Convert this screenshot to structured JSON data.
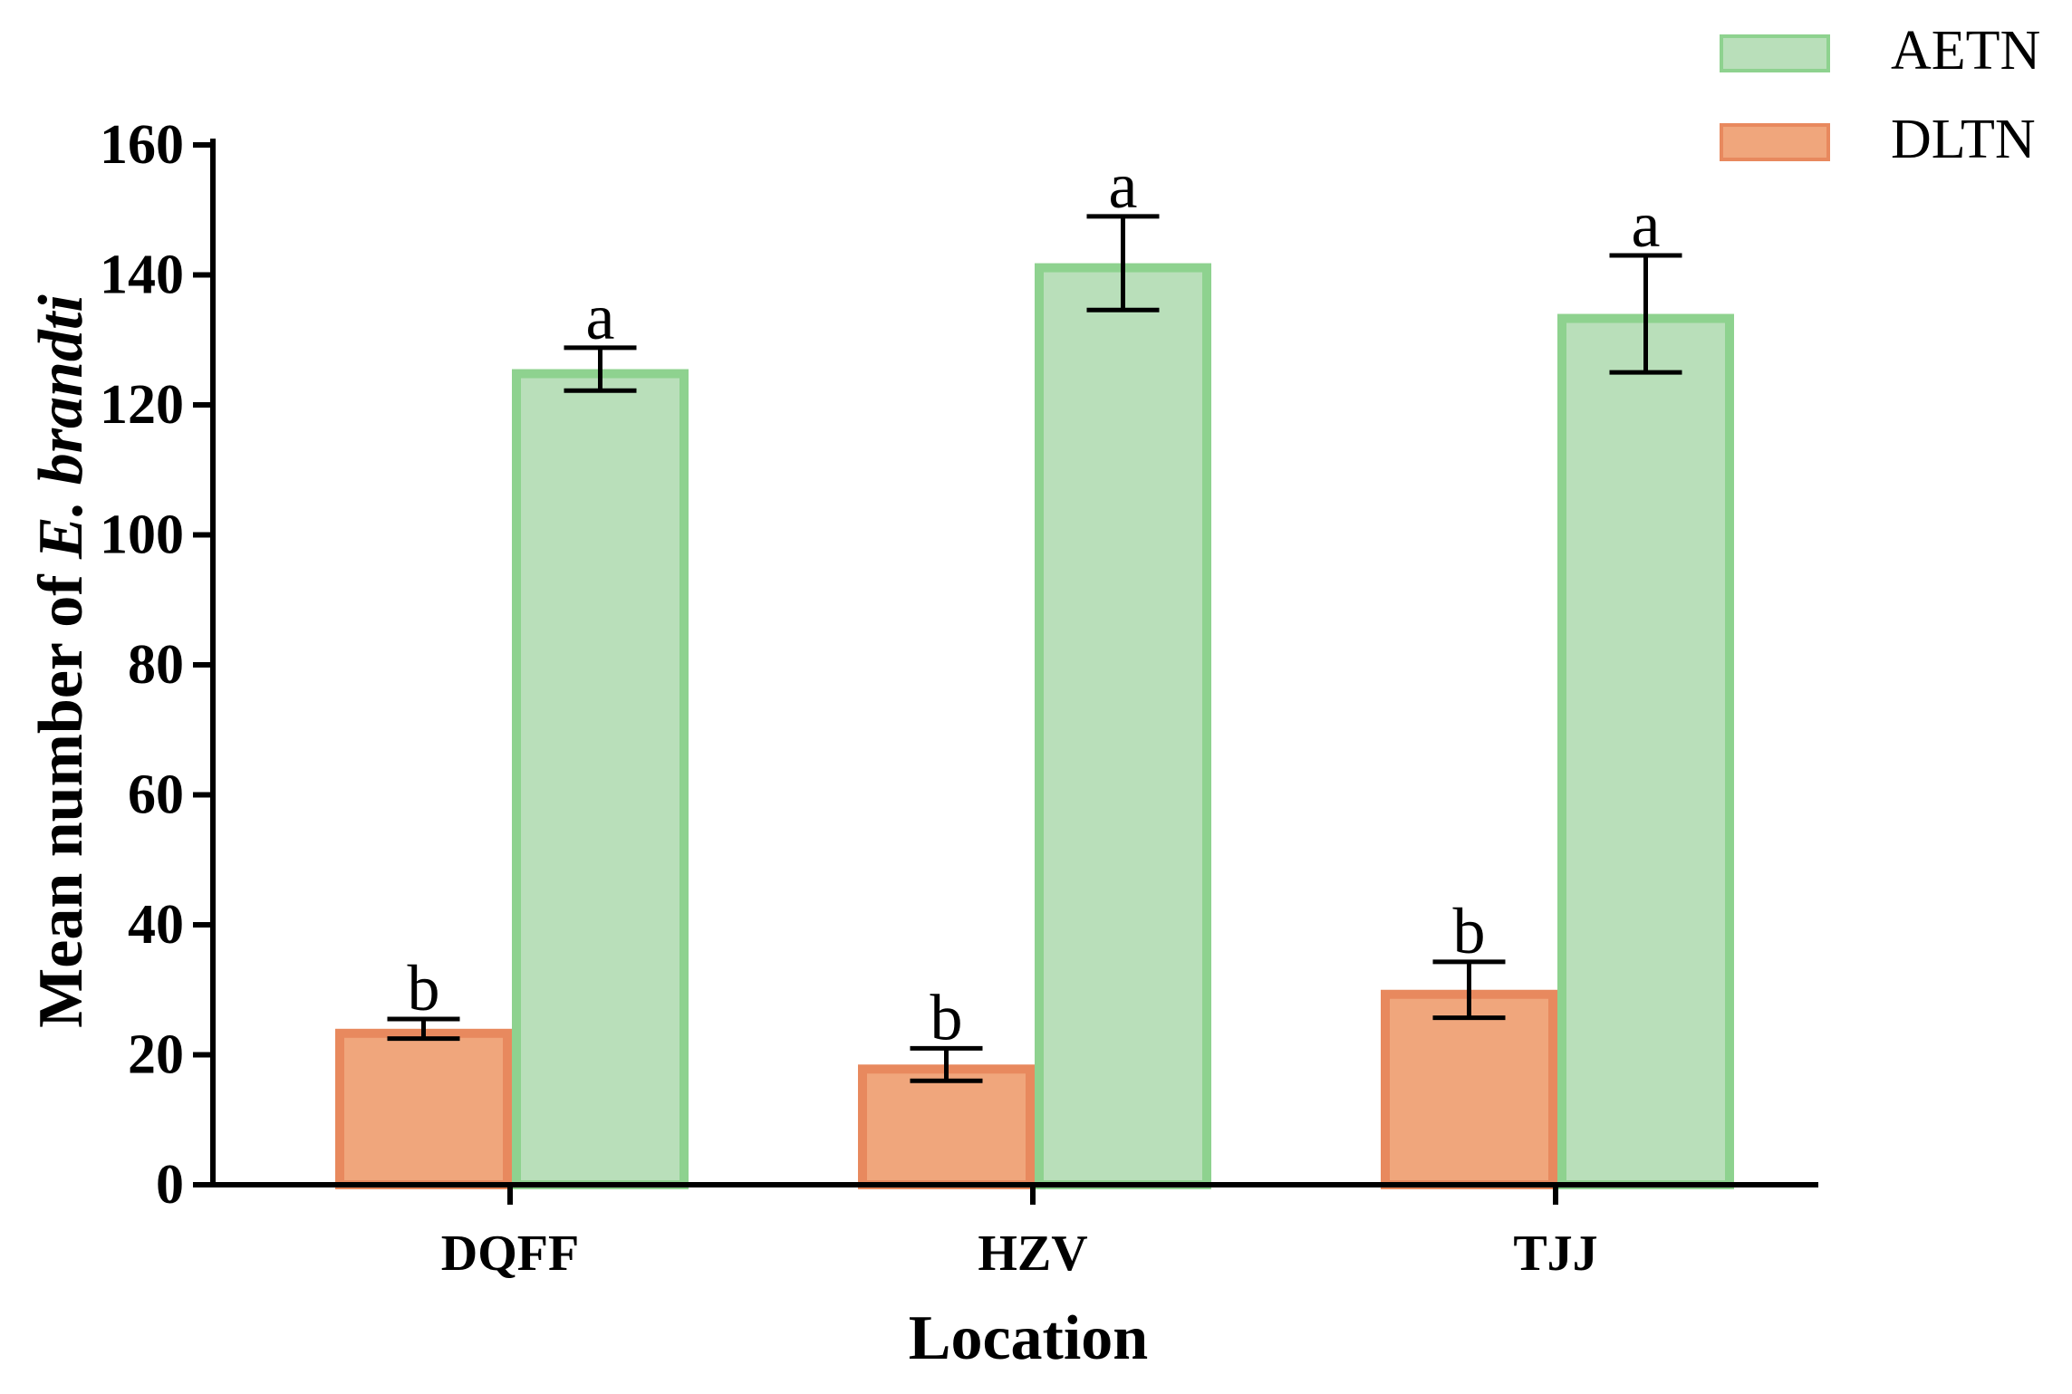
{
  "chart_data": {
    "type": "bar",
    "xlabel": "Location",
    "ylabel_prefix": "Mean number of ",
    "ylabel_species": "E. brandti",
    "ylim": [
      0,
      160
    ],
    "yticks": [
      "0",
      "20",
      "40",
      "60",
      "80",
      "100",
      "120",
      "140",
      "160"
    ],
    "categories": [
      "DQFF",
      "HZV",
      "TJJ"
    ],
    "series": [
      {
        "name": "DLTN",
        "color": "#F0A67C",
        "edge_color": "#E8895E",
        "values": [
          24,
          18.5,
          30
        ],
        "errors": [
          1.5,
          2.5,
          4.3
        ],
        "labels": [
          "b",
          "b",
          "b"
        ]
      },
      {
        "name": "AETN",
        "color": "#B9DFBA",
        "edge_color": "#8ED28F",
        "values": [
          125.5,
          141.8,
          134
        ],
        "errors": [
          3.3,
          7.2,
          9
        ],
        "labels": [
          "a",
          "a",
          "a"
        ]
      }
    ],
    "legend_order": [
      "AETN",
      "DLTN"
    ],
    "legend_position": "top-right"
  }
}
